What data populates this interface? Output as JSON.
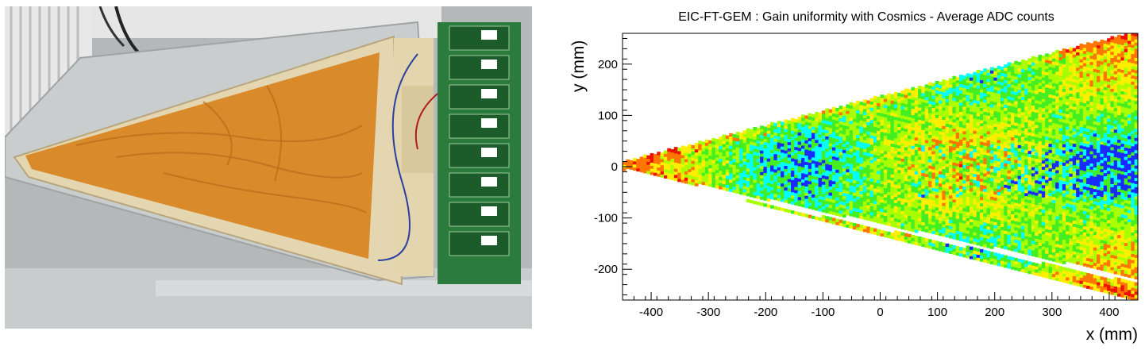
{
  "photo": {
    "subject": "triangular GEM detector with orange kapton foil and readout electronics cards"
  },
  "colors": {
    "foil": "#d98a2b",
    "frame": "#e6d9b8",
    "pcb": "#1e8a3e",
    "table": "#b9bcbc",
    "map_low": "#00ffff",
    "map_mid": "#44ee22",
    "map_high": "#ffee00",
    "map_max": "#ee1100"
  },
  "chart_data": {
    "type": "heatmap",
    "title": "EIC-FT-GEM : Gain uniformity with Cosmics - Average ADC counts",
    "xlabel": "x (mm)",
    "ylabel": "y (mm)",
    "xlim": [
      -450,
      450
    ],
    "ylim": [
      -260,
      260
    ],
    "xticks": [
      -400,
      -300,
      -200,
      -100,
      0,
      100,
      200,
      300,
      400
    ],
    "yticks": [
      -200,
      -100,
      0,
      100,
      200
    ],
    "region": {
      "apex": [
        -450,
        0
      ],
      "upper_edge_end": [
        450,
        255
      ],
      "lower_edge_end": [
        450,
        -255
      ]
    },
    "dead_gap": {
      "x_start": -450,
      "y_start": -12,
      "x_end": 450,
      "y_end": -225
    },
    "grid": false,
    "colorscale": [
      "#1a2bff",
      "#00ffff",
      "#44ee22",
      "#aaff00",
      "#ffee00",
      "#ff7700",
      "#ee1100"
    ]
  }
}
